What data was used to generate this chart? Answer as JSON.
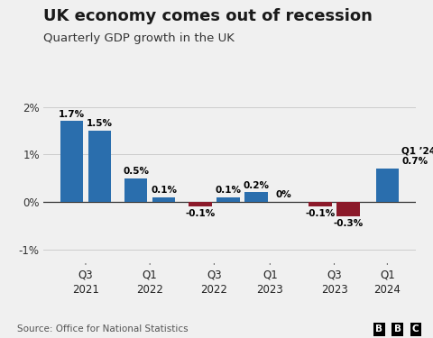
{
  "title": "UK economy comes out of recession",
  "subtitle": "Quarterly GDP growth in the UK",
  "source": "Source: Office for National Statistics",
  "background_color": "#f0f0f0",
  "bar_values": [
    1.7,
    1.5,
    0.5,
    0.1,
    -0.1,
    0.1,
    0.2,
    0.0,
    -0.1,
    -0.3,
    0.7
  ],
  "bar_colors": [
    "#2a6ead",
    "#2a6ead",
    "#2a6ead",
    "#2a6ead",
    "#8b1a2a",
    "#2a6ead",
    "#2a6ead",
    "#2a6ead",
    "#8b1a2a",
    "#8b1a2a",
    "#2a6ead"
  ],
  "bar_labels": [
    "1.7%",
    "1.5%",
    "0.5%",
    "0.1%",
    "-0.1%",
    "0.1%",
    "0.2%",
    "0%",
    "-0.1%",
    "-0.3%",
    "0.7%"
  ],
  "positions": [
    0,
    1,
    2.3,
    3.3,
    4.6,
    5.6,
    6.6,
    7.6,
    8.9,
    9.9,
    11.3
  ],
  "group_tick_positions": [
    0.5,
    2.8,
    5.1,
    7.1,
    9.4,
    11.3
  ],
  "group_tick_labels": [
    "Q3\n2021",
    "Q1\n2022",
    "Q3\n2022",
    "Q1\n2023",
    "Q3\n2023",
    "Q1\n2024"
  ],
  "ylim": [
    -1.3,
    2.4
  ],
  "yticks": [
    -1.0,
    0.0,
    1.0,
    2.0
  ],
  "ytick_labels": [
    "-1%",
    "0%",
    "1%",
    "2%"
  ],
  "bar_width": 0.82,
  "blue_color": "#2a6ead",
  "red_color": "#8b1a2a",
  "title_fontsize": 13,
  "subtitle_fontsize": 9.5,
  "source_fontsize": 7.5,
  "label_fontsize": 7.5
}
